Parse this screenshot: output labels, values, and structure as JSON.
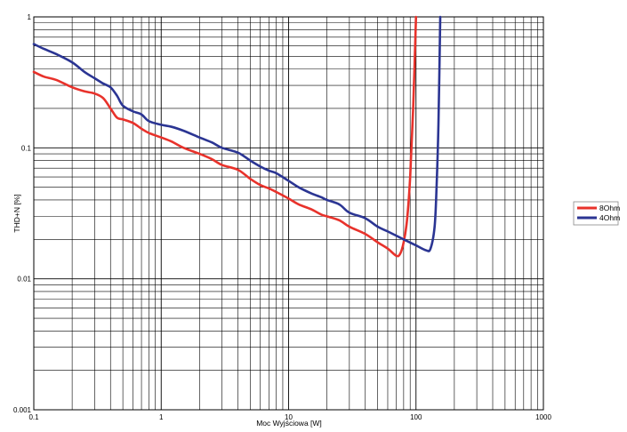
{
  "chart_data": {
    "type": "line",
    "xlabel": "Moc Wyjściowa [W]",
    "ylabel": "THD+N [%]",
    "x_scale": "log",
    "y_scale": "log",
    "xlim": [
      0.1,
      1000
    ],
    "ylim": [
      0.001,
      1
    ],
    "x_ticks": [
      "0.1",
      "1",
      "10",
      "100",
      "1000"
    ],
    "y_ticks": [
      "0.001",
      "0.01",
      "0.1",
      "1"
    ],
    "grid": true,
    "legend_position": "right",
    "series": [
      {
        "name": "8Ohm",
        "color": "#e8322b",
        "points": [
          [
            0.1,
            0.38
          ],
          [
            0.12,
            0.35
          ],
          [
            0.15,
            0.33
          ],
          [
            0.2,
            0.29
          ],
          [
            0.25,
            0.27
          ],
          [
            0.3,
            0.26
          ],
          [
            0.35,
            0.24
          ],
          [
            0.4,
            0.2
          ],
          [
            0.45,
            0.17
          ],
          [
            0.5,
            0.165
          ],
          [
            0.6,
            0.155
          ],
          [
            0.7,
            0.14
          ],
          [
            0.8,
            0.13
          ],
          [
            1.0,
            0.12
          ],
          [
            1.2,
            0.112
          ],
          [
            1.5,
            0.1
          ],
          [
            2.0,
            0.09
          ],
          [
            2.5,
            0.082
          ],
          [
            3.0,
            0.074
          ],
          [
            4.0,
            0.068
          ],
          [
            5.0,
            0.058
          ],
          [
            6.0,
            0.052
          ],
          [
            7.0,
            0.049
          ],
          [
            8.0,
            0.046
          ],
          [
            10.0,
            0.041
          ],
          [
            12.0,
            0.037
          ],
          [
            15.0,
            0.034
          ],
          [
            18.0,
            0.031
          ],
          [
            20.0,
            0.03
          ],
          [
            25.0,
            0.028
          ],
          [
            30.0,
            0.025
          ],
          [
            40.0,
            0.022
          ],
          [
            50.0,
            0.019
          ],
          [
            60.0,
            0.017
          ],
          [
            70.0,
            0.015
          ],
          [
            75.0,
            0.0155
          ],
          [
            80.0,
            0.019
          ],
          [
            85.0,
            0.028
          ],
          [
            90.0,
            0.06
          ],
          [
            95.0,
            0.2
          ],
          [
            100.0,
            1.0
          ]
        ]
      },
      {
        "name": "4Ohm",
        "color": "#2b3593",
        "points": [
          [
            0.1,
            0.62
          ],
          [
            0.12,
            0.57
          ],
          [
            0.15,
            0.52
          ],
          [
            0.2,
            0.45
          ],
          [
            0.25,
            0.38
          ],
          [
            0.3,
            0.34
          ],
          [
            0.35,
            0.31
          ],
          [
            0.4,
            0.29
          ],
          [
            0.45,
            0.25
          ],
          [
            0.5,
            0.21
          ],
          [
            0.6,
            0.19
          ],
          [
            0.7,
            0.18
          ],
          [
            0.8,
            0.16
          ],
          [
            1.0,
            0.15
          ],
          [
            1.2,
            0.145
          ],
          [
            1.5,
            0.135
          ],
          [
            2.0,
            0.12
          ],
          [
            2.5,
            0.11
          ],
          [
            3.0,
            0.1
          ],
          [
            4.0,
            0.092
          ],
          [
            5.0,
            0.08
          ],
          [
            6.0,
            0.072
          ],
          [
            7.0,
            0.067
          ],
          [
            8.0,
            0.064
          ],
          [
            10.0,
            0.056
          ],
          [
            12.0,
            0.05
          ],
          [
            15.0,
            0.045
          ],
          [
            18.0,
            0.042
          ],
          [
            20.0,
            0.04
          ],
          [
            25.0,
            0.037
          ],
          [
            30.0,
            0.032
          ],
          [
            40.0,
            0.029
          ],
          [
            50.0,
            0.025
          ],
          [
            60.0,
            0.023
          ],
          [
            80.0,
            0.02
          ],
          [
            100.0,
            0.018
          ],
          [
            120.0,
            0.0165
          ],
          [
            130.0,
            0.017
          ],
          [
            140.0,
            0.025
          ],
          [
            145.0,
            0.05
          ],
          [
            150.0,
            0.15
          ],
          [
            155.0,
            1.0
          ]
        ]
      }
    ]
  }
}
